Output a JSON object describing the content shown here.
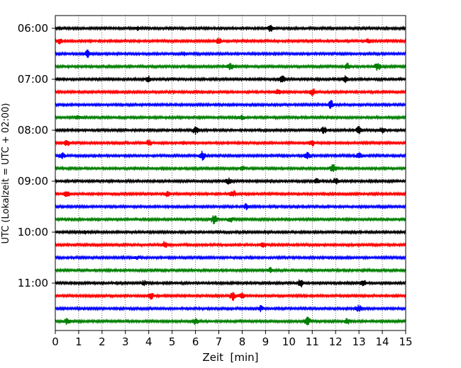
{
  "chart_data": {
    "type": "line",
    "title": "",
    "xlabel": "Zeit  [min]",
    "ylabel": "UTC (Lokalzeit = UTC + 02:00)",
    "xlim": [
      0,
      15
    ],
    "x_ticks": [
      "0",
      "1",
      "2",
      "3",
      "4",
      "5",
      "6",
      "7",
      "8",
      "9",
      "10",
      "11",
      "12",
      "13",
      "14",
      "15"
    ],
    "y_ticks": [
      "06:00",
      "07:00",
      "08:00",
      "09:00",
      "10:00",
      "11:00"
    ],
    "grid": "vertical dotted",
    "trace_interval_min": 15,
    "trace_colors": [
      "#000000",
      "#ff0000",
      "#0000ff",
      "#008000"
    ],
    "traces": [
      {
        "start": "06:00",
        "color": "#000000",
        "events": [
          [
            9.2,
            1.6
          ],
          [
            3.5,
            1.0
          ]
        ]
      },
      {
        "start": "06:15",
        "color": "#ff0000",
        "events": [
          [
            0.2,
            1.5
          ],
          [
            7.0,
            1.4
          ],
          [
            13.4,
            1.2
          ]
        ]
      },
      {
        "start": "06:30",
        "color": "#0000ff",
        "events": [
          [
            1.4,
            2.0
          ],
          [
            5.5,
            1.0
          ]
        ]
      },
      {
        "start": "06:45",
        "color": "#008000",
        "events": [
          [
            7.5,
            1.6
          ],
          [
            12.5,
            1.5
          ],
          [
            13.8,
            2.0
          ]
        ]
      },
      {
        "start": "07:00",
        "color": "#000000",
        "events": [
          [
            4.0,
            1.4
          ],
          [
            9.7,
            2.0
          ],
          [
            12.4,
            1.5
          ]
        ]
      },
      {
        "start": "07:15",
        "color": "#ff0000",
        "events": [
          [
            9.5,
            1.6
          ],
          [
            11.0,
            2.0
          ]
        ]
      },
      {
        "start": "07:30",
        "color": "#0000ff",
        "events": [
          [
            11.8,
            2.2
          ]
        ]
      },
      {
        "start": "07:45",
        "color": "#008000",
        "events": [
          [
            1.0,
            1.0
          ],
          [
            8.0,
            1.0
          ]
        ]
      },
      {
        "start": "08:00",
        "color": "#000000",
        "events": [
          [
            6.0,
            1.8
          ],
          [
            11.5,
            1.6
          ],
          [
            13.0,
            1.8
          ],
          [
            14.0,
            1.5
          ]
        ]
      },
      {
        "start": "08:15",
        "color": "#ff0000",
        "events": [
          [
            0.5,
            1.4
          ],
          [
            4.0,
            1.6
          ],
          [
            5.5,
            1.2
          ],
          [
            11.0,
            1.5
          ]
        ]
      },
      {
        "start": "08:30",
        "color": "#0000ff",
        "events": [
          [
            0.3,
            1.5
          ],
          [
            6.3,
            2.2
          ],
          [
            10.8,
            1.8
          ],
          [
            13.0,
            1.4
          ]
        ]
      },
      {
        "start": "08:45",
        "color": "#008000",
        "events": [
          [
            11.9,
            2.0
          ],
          [
            8.0,
            1.0
          ]
        ]
      },
      {
        "start": "09:00",
        "color": "#000000",
        "events": [
          [
            7.4,
            1.5
          ],
          [
            12.0,
            1.5
          ],
          [
            11.2,
            1.2
          ]
        ]
      },
      {
        "start": "09:15",
        "color": "#ff0000",
        "events": [
          [
            0.5,
            1.6
          ],
          [
            7.6,
            1.8
          ],
          [
            4.8,
            1.2
          ]
        ]
      },
      {
        "start": "09:30",
        "color": "#0000ff",
        "events": [
          [
            8.2,
            1.6
          ]
        ]
      },
      {
        "start": "09:45",
        "color": "#008000",
        "events": [
          [
            6.8,
            2.4
          ],
          [
            7.5,
            1.2
          ]
        ]
      },
      {
        "start": "10:00",
        "color": "#000000",
        "events": [
          [
            1.3,
            1.0
          ]
        ]
      },
      {
        "start": "10:15",
        "color": "#ff0000",
        "events": [
          [
            4.7,
            1.8
          ],
          [
            8.9,
            1.2
          ]
        ]
      },
      {
        "start": "10:30",
        "color": "#0000ff",
        "events": [
          [
            3.5,
            0.8
          ]
        ]
      },
      {
        "start": "10:45",
        "color": "#008000",
        "events": [
          [
            9.2,
            1.4
          ]
        ]
      },
      {
        "start": "11:00",
        "color": "#000000",
        "events": [
          [
            10.5,
            2.0
          ],
          [
            13.2,
            1.4
          ],
          [
            3.8,
            1.2
          ]
        ]
      },
      {
        "start": "11:15",
        "color": "#ff0000",
        "events": [
          [
            4.1,
            1.6
          ],
          [
            7.6,
            2.2
          ],
          [
            8.0,
            1.5
          ]
        ]
      },
      {
        "start": "11:30",
        "color": "#0000ff",
        "events": [
          [
            8.8,
            1.4
          ],
          [
            13.0,
            1.6
          ]
        ]
      },
      {
        "start": "11:45",
        "color": "#008000",
        "events": [
          [
            0.5,
            1.5
          ],
          [
            6.0,
            1.5
          ],
          [
            10.8,
            2.0
          ],
          [
            12.5,
            1.5
          ]
        ]
      }
    ]
  }
}
